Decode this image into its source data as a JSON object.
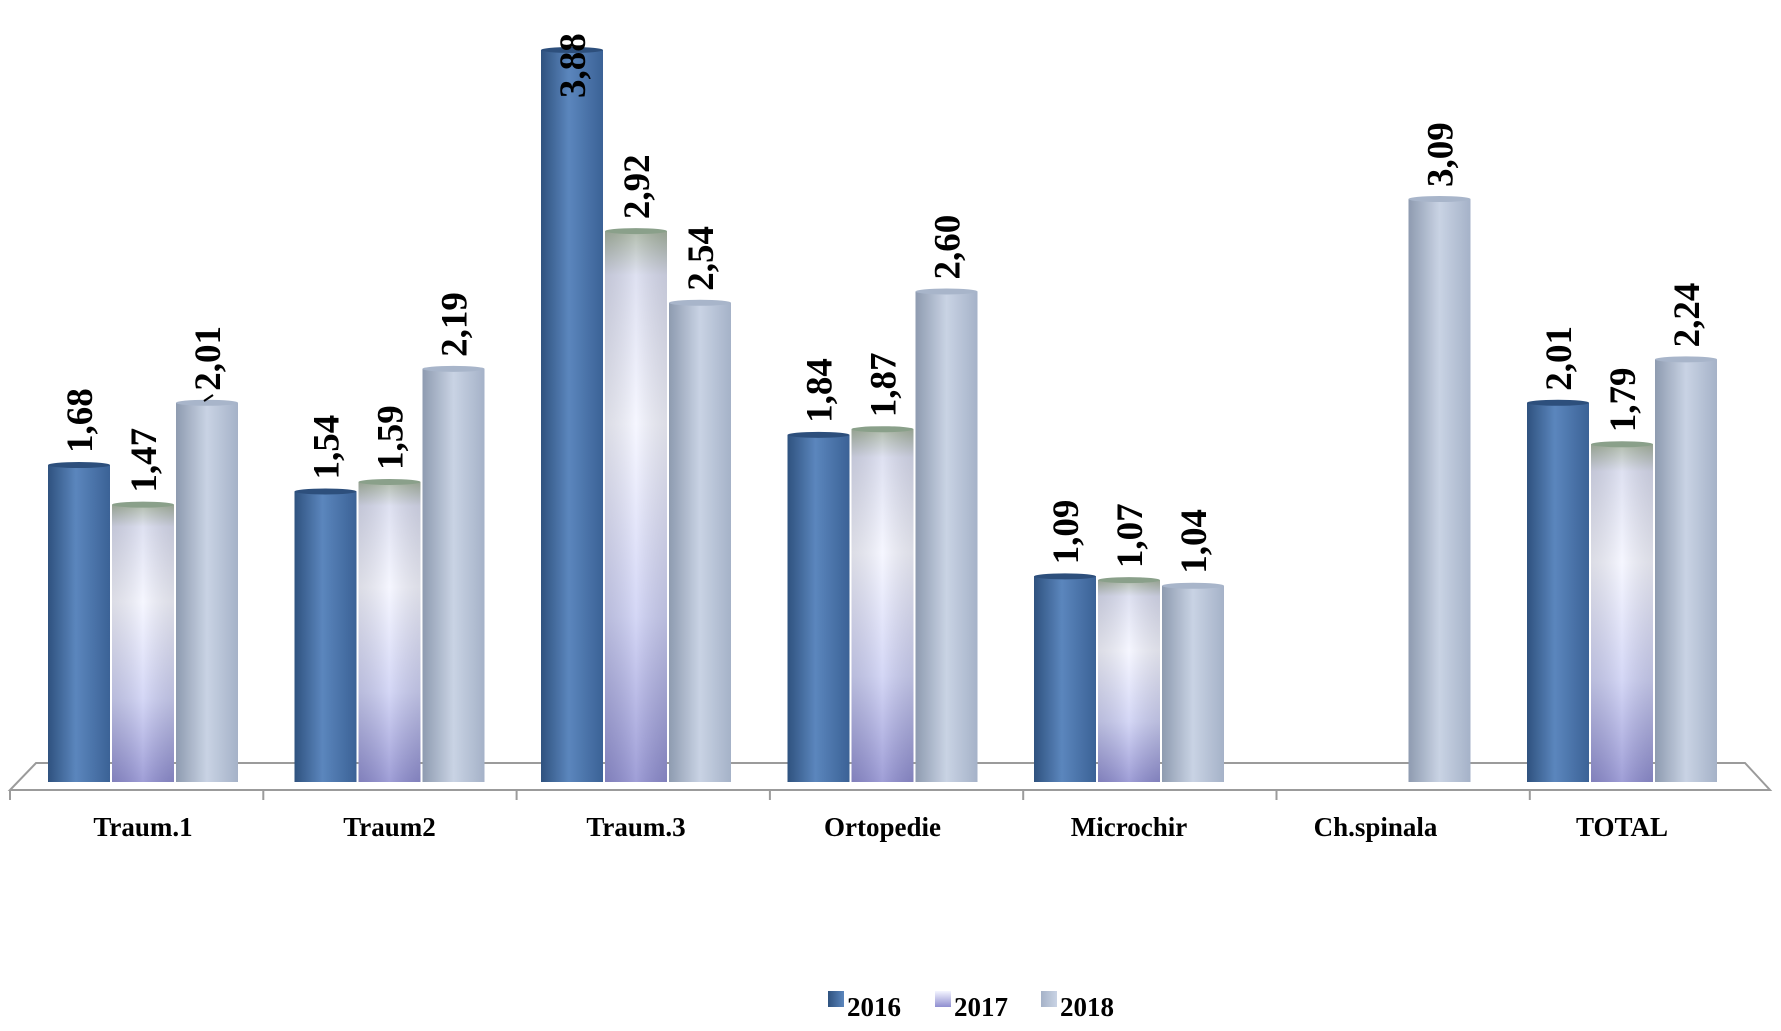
{
  "chart_data": {
    "type": "bar",
    "categories": [
      "Traum.1",
      "Traum2",
      "Traum.3",
      "Ortopedie",
      "Microchir",
      "Ch.spinala",
      "TOTAL"
    ],
    "series": [
      {
        "name": "2016",
        "values": [
          1.68,
          1.54,
          3.88,
          1.84,
          1.09,
          null,
          2.01
        ],
        "labels": [
          "1,68",
          "1,54",
          "3,88",
          "1,84",
          "1,09",
          "",
          "2,01"
        ]
      },
      {
        "name": "2017",
        "values": [
          1.47,
          1.59,
          2.92,
          1.87,
          1.07,
          null,
          1.79
        ],
        "labels": [
          "1,47",
          "1,59",
          "2,92",
          "1,87",
          "1,07",
          "",
          "1,79"
        ]
      },
      {
        "name": "2018",
        "values": [
          2.01,
          2.19,
          2.54,
          2.6,
          1.04,
          3.09,
          2.24
        ],
        "labels": [
          "2,01",
          "2,19",
          "2,54",
          "2,60",
          "1,04",
          "3,09",
          "2,24"
        ]
      }
    ],
    "title": "",
    "xlabel": "",
    "ylabel": "",
    "ylim": [
      0,
      3.88
    ],
    "grid": false,
    "legend_position": "bottom",
    "colors": [
      "#4a72a6",
      "#c9cdf2",
      "#b4c2d8"
    ]
  }
}
